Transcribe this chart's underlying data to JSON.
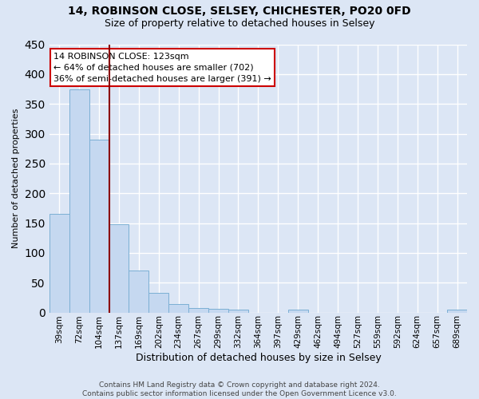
{
  "title": "14, ROBINSON CLOSE, SELSEY, CHICHESTER, PO20 0FD",
  "subtitle": "Size of property relative to detached houses in Selsey",
  "xlabel": "Distribution of detached houses by size in Selsey",
  "ylabel": "Number of detached properties",
  "categories": [
    "39sqm",
    "72sqm",
    "104sqm",
    "137sqm",
    "169sqm",
    "202sqm",
    "234sqm",
    "267sqm",
    "299sqm",
    "332sqm",
    "364sqm",
    "397sqm",
    "429sqm",
    "462sqm",
    "494sqm",
    "527sqm",
    "559sqm",
    "592sqm",
    "624sqm",
    "657sqm",
    "689sqm"
  ],
  "values": [
    165,
    375,
    290,
    148,
    70,
    33,
    14,
    7,
    6,
    5,
    0,
    0,
    5,
    0,
    0,
    0,
    0,
    0,
    0,
    0,
    5
  ],
  "bar_color": "#c5d8f0",
  "bar_edge_color": "#7bafd4",
  "vline_x_index": 2,
  "vline_color": "#8b0000",
  "annotation_text": "14 ROBINSON CLOSE: 123sqm\n← 64% of detached houses are smaller (702)\n36% of semi-detached houses are larger (391) →",
  "annotation_box_facecolor": "#ffffff",
  "annotation_box_edgecolor": "#cc0000",
  "background_color": "#dce6f5",
  "grid_color": "#ffffff",
  "footer": "Contains HM Land Registry data © Crown copyright and database right 2024.\nContains public sector information licensed under the Open Government Licence v3.0.",
  "ylim": [
    0,
    450
  ],
  "title_fontsize": 10,
  "subtitle_fontsize": 9,
  "ylabel_fontsize": 8,
  "xlabel_fontsize": 9,
  "tick_fontsize": 7.5,
  "footer_fontsize": 6.5,
  "annotation_fontsize": 8
}
